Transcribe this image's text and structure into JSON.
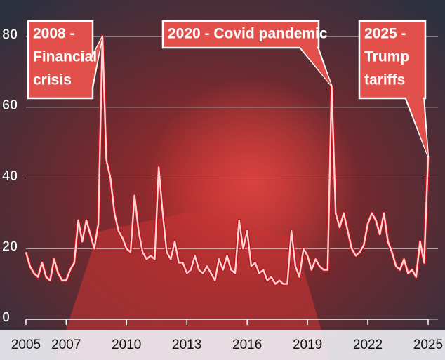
{
  "chart_data": {
    "type": "line",
    "x": [
      2005.0,
      2005.2,
      2005.4,
      2005.6,
      2005.8,
      2006.0,
      2006.2,
      2006.4,
      2006.6,
      2006.8,
      2007.0,
      2007.2,
      2007.4,
      2007.6,
      2007.8,
      2008.0,
      2008.2,
      2008.4,
      2008.6,
      2008.8,
      2009.0,
      2009.2,
      2009.4,
      2009.6,
      2009.8,
      2010.0,
      2010.2,
      2010.4,
      2010.6,
      2010.8,
      2011.0,
      2011.2,
      2011.4,
      2011.6,
      2011.8,
      2012.0,
      2012.2,
      2012.4,
      2012.6,
      2012.8,
      2013.0,
      2013.2,
      2013.4,
      2013.6,
      2013.8,
      2014.0,
      2014.2,
      2014.4,
      2014.6,
      2014.8,
      2015.0,
      2015.2,
      2015.4,
      2015.6,
      2015.8,
      2016.0,
      2016.2,
      2016.4,
      2016.6,
      2016.8,
      2017.0,
      2017.2,
      2017.4,
      2017.6,
      2017.8,
      2018.0,
      2018.2,
      2018.4,
      2018.6,
      2018.8,
      2019.0,
      2019.2,
      2019.4,
      2019.6,
      2019.8,
      2020.0,
      2020.2,
      2020.4,
      2020.6,
      2020.8,
      2021.0,
      2021.2,
      2021.4,
      2021.6,
      2021.8,
      2022.0,
      2022.2,
      2022.4,
      2022.6,
      2022.8,
      2023.0,
      2023.2,
      2023.4,
      2023.6,
      2023.8,
      2024.0,
      2024.2,
      2024.4,
      2024.6,
      2024.8,
      2025.0
    ],
    "values": [
      19,
      15,
      13,
      12,
      16,
      12,
      11,
      17,
      13,
      11,
      11,
      14,
      16,
      28,
      22,
      28,
      24,
      20,
      27,
      80,
      45,
      40,
      30,
      25,
      23,
      20,
      19,
      35,
      25,
      19,
      17,
      18,
      17,
      43,
      30,
      19,
      17,
      22,
      16,
      16,
      13,
      14,
      18,
      14,
      13,
      15,
      13,
      11,
      17,
      14,
      18,
      14,
      13,
      28,
      20,
      25,
      15,
      16,
      13,
      14,
      11,
      12,
      10,
      11,
      10,
      10,
      25,
      15,
      12,
      20,
      18,
      14,
      17,
      15,
      14,
      14,
      66,
      30,
      26,
      30,
      25,
      20,
      18,
      19,
      21,
      27,
      30,
      28,
      24,
      30,
      22,
      19,
      15,
      14,
      17,
      13,
      14,
      12,
      22,
      16,
      46
    ],
    "color": "#fcd6d6",
    "xlim": [
      2005,
      2025
    ],
    "xticks": [
      2005,
      2007,
      2010,
      2013,
      2016,
      2019,
      2022,
      2025
    ],
    "ylim": [
      0,
      80
    ],
    "yticks": [
      0,
      20,
      40,
      60,
      80
    ],
    "grid": true,
    "annotations": [
      {
        "text": [
          "2008 -",
          "Financial",
          "crisis"
        ],
        "x": 2008.8,
        "y": 80
      },
      {
        "text": [
          "2020 - Covid pandemic"
        ],
        "x": 2020.2,
        "y": 66
      },
      {
        "text": [
          "2025 -",
          "Trump",
          "tariffs"
        ],
        "x": 2025.0,
        "y": 46
      }
    ]
  }
}
